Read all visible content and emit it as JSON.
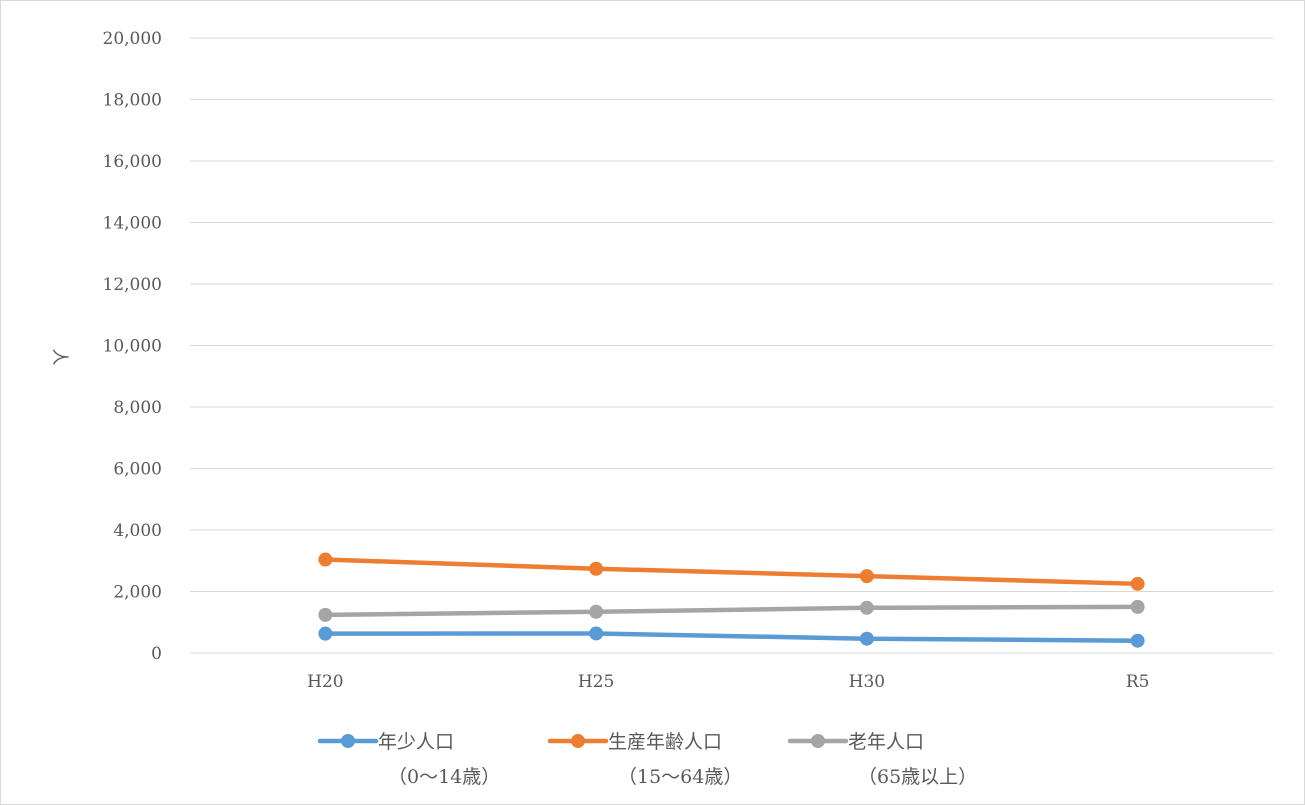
{
  "chart_data": {
    "type": "line",
    "categories": [
      "H20",
      "H25",
      "H30",
      "R5"
    ],
    "series": [
      {
        "name": "年少人口",
        "name_line2": "（0～14歳）",
        "color": "#5B9BD5",
        "values": [
          630,
          635,
          465,
          400
        ]
      },
      {
        "name": "生産年齢人口",
        "name_line2": "（15～64歳）",
        "color": "#ED7D31",
        "values": [
          3040,
          2740,
          2500,
          2250
        ]
      },
      {
        "name": "老年人口",
        "name_line2": "（65歳以上）",
        "color": "#A5A5A5",
        "values": [
          1240,
          1340,
          1470,
          1500
        ]
      }
    ],
    "ylabel": "人",
    "ylim": [
      0,
      20000
    ],
    "yticks": [
      "0",
      "2,000",
      "4,000",
      "6,000",
      "8,000",
      "10,000",
      "12,000",
      "14,000",
      "16,000",
      "18,000",
      "20,000"
    ],
    "grid": true,
    "legend_position": "bottom"
  }
}
